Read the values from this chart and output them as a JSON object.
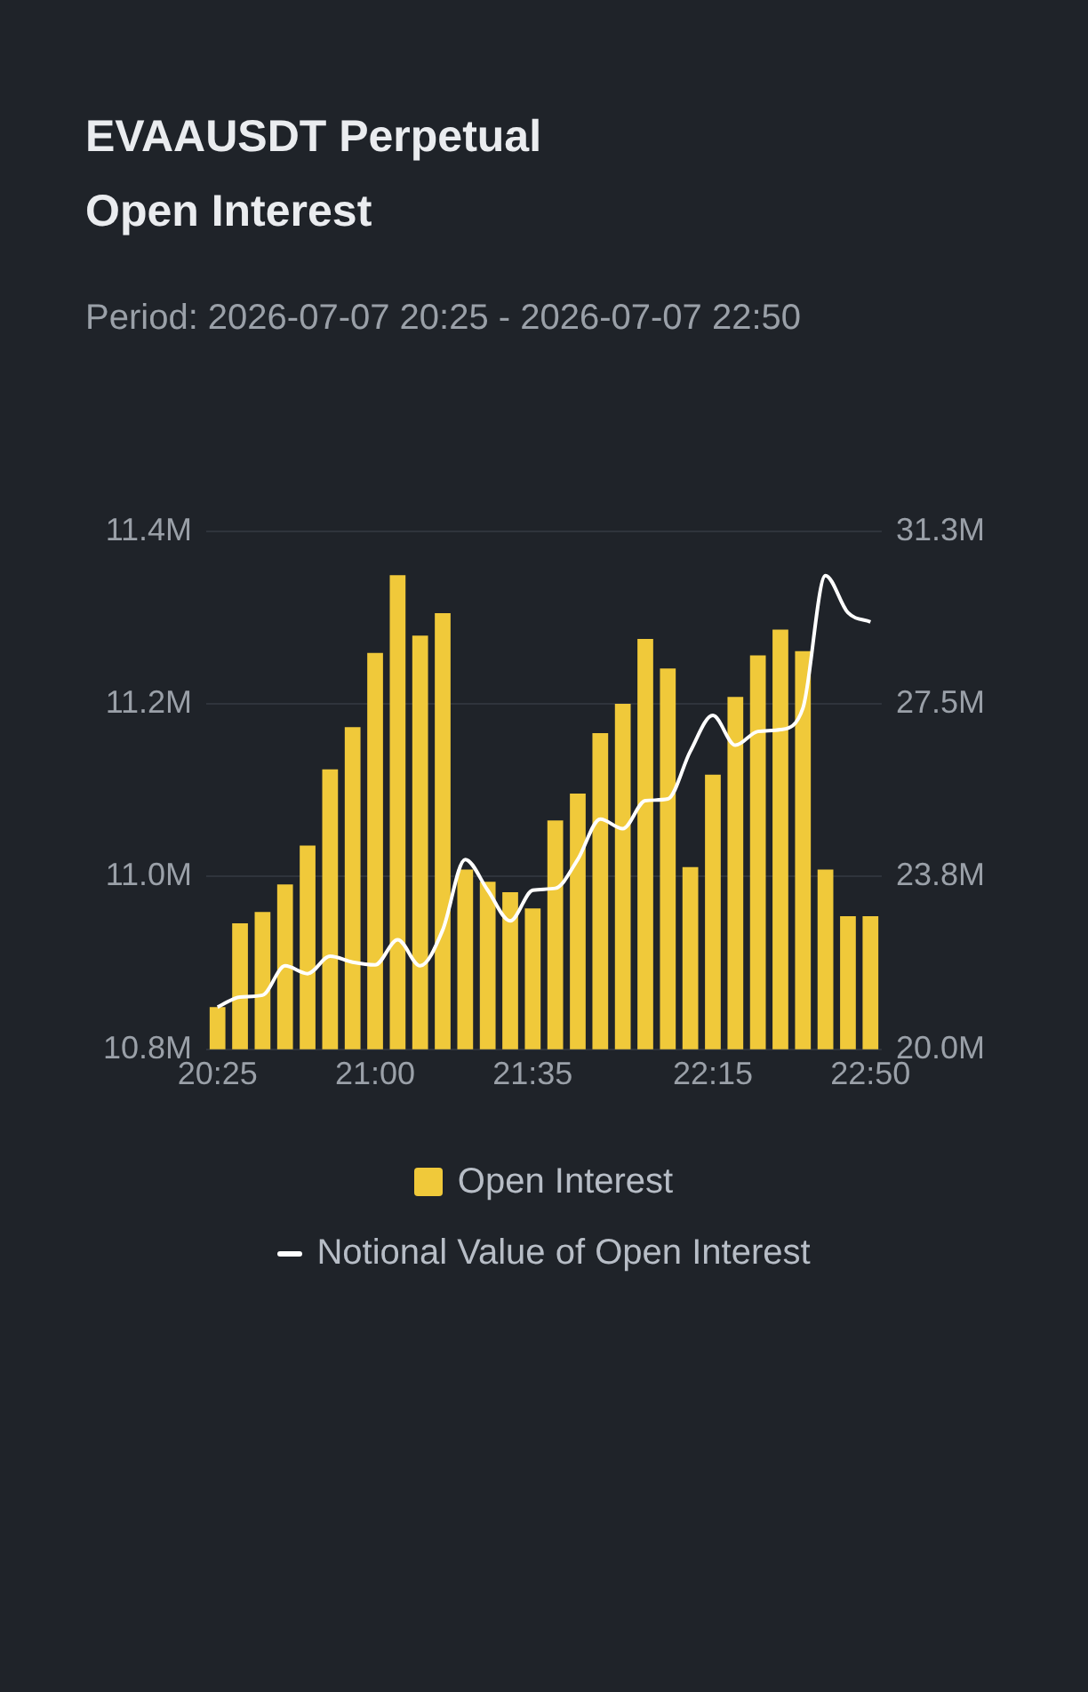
{
  "chart_data": {
    "type": "bar",
    "title": "EVAAUSDT Perpetual\nOpen Interest",
    "subtitle": "Period: 2026-07-07 20:25 - 2026-07-07 22:50",
    "categories": [
      "20:25",
      null,
      null,
      null,
      null,
      null,
      null,
      "21:00",
      null,
      null,
      null,
      null,
      null,
      null,
      "21:35",
      null,
      null,
      null,
      null,
      null,
      null,
      null,
      "22:15",
      null,
      null,
      null,
      null,
      null,
      null,
      "22:50"
    ],
    "series": [
      {
        "name": "Open Interest",
        "color": "#f0c93a",
        "values": [
          10.849,
          10.946,
          10.959,
          10.991,
          11.036,
          11.124,
          11.173,
          11.259,
          11.349,
          11.279,
          11.305,
          11.008,
          10.994,
          10.982,
          10.963,
          11.065,
          11.096,
          11.166,
          11.2,
          11.275,
          11.241,
          11.011,
          11.118,
          11.208,
          11.256,
          11.286,
          11.261,
          11.008,
          10.954,
          10.954
        ]
      },
      {
        "name": "Notional Value of Open Interest",
        "type": "line",
        "axis": "y2",
        "color": "#ffffff",
        "values": [
          20.92,
          21.14,
          21.18,
          21.82,
          21.65,
          22.03,
          21.9,
          21.84,
          22.39,
          21.82,
          22.6,
          24.14,
          23.47,
          22.8,
          23.47,
          23.51,
          24.14,
          25.02,
          24.81,
          25.42,
          25.46,
          26.5,
          27.28,
          26.63,
          26.93,
          26.97,
          27.44,
          30.33,
          29.52,
          29.32
        ]
      }
    ],
    "ylim": [
      10.8,
      11.4
    ],
    "yticks": [
      {
        "value": 10.8,
        "label": "10.8M"
      },
      {
        "value": 11.0,
        "label": "11.0M"
      },
      {
        "value": 11.2,
        "label": "11.2M"
      },
      {
        "value": 11.4,
        "label": "11.4M"
      }
    ],
    "y2lim": [
      20.0,
      31.3
    ],
    "y2ticks": [
      {
        "value": 20.0,
        "label": "20.0M"
      },
      {
        "value": 23.77,
        "label": "23.8M"
      },
      {
        "value": 27.53,
        "label": "27.5M"
      },
      {
        "value": 31.3,
        "label": "31.3M"
      }
    ],
    "grid": "y",
    "legend": "bottom",
    "marker": "none"
  }
}
